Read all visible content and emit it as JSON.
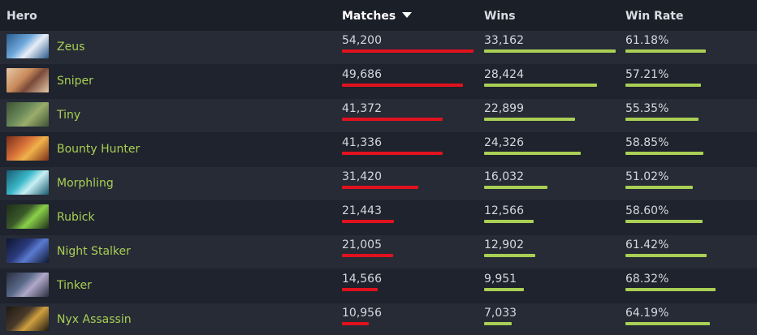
{
  "header": {
    "hero": "Hero",
    "matches": "Matches",
    "wins": "Wins",
    "win_rate": "Win Rate"
  },
  "colors": {
    "matches_bar": "#e0121e",
    "wins_bar": "#a9cf54",
    "hero_name": "#a9cf54"
  },
  "rows": [
    {
      "hero": "Zeus",
      "matches": "54,200",
      "wins": "33,162",
      "win_rate": "61.18%",
      "matches_value": 54200,
      "wins_value": 33162,
      "win_rate_value": 61.18
    },
    {
      "hero": "Sniper",
      "matches": "49,686",
      "wins": "28,424",
      "win_rate": "57.21%",
      "matches_value": 49686,
      "wins_value": 28424,
      "win_rate_value": 57.21
    },
    {
      "hero": "Tiny",
      "matches": "41,372",
      "wins": "22,899",
      "win_rate": "55.35%",
      "matches_value": 41372,
      "wins_value": 22899,
      "win_rate_value": 55.35
    },
    {
      "hero": "Bounty Hunter",
      "matches": "41,336",
      "wins": "24,326",
      "win_rate": "58.85%",
      "matches_value": 41336,
      "wins_value": 24326,
      "win_rate_value": 58.85
    },
    {
      "hero": "Morphling",
      "matches": "31,420",
      "wins": "16,032",
      "win_rate": "51.02%",
      "matches_value": 31420,
      "wins_value": 16032,
      "win_rate_value": 51.02
    },
    {
      "hero": "Rubick",
      "matches": "21,443",
      "wins": "12,566",
      "win_rate": "58.60%",
      "matches_value": 21443,
      "wins_value": 12566,
      "win_rate_value": 58.6
    },
    {
      "hero": "Night Stalker",
      "matches": "21,005",
      "wins": "12,902",
      "win_rate": "61.42%",
      "matches_value": 21005,
      "wins_value": 12902,
      "win_rate_value": 61.42
    },
    {
      "hero": "Tinker",
      "matches": "14,566",
      "wins": "9,951",
      "win_rate": "68.32%",
      "matches_value": 14566,
      "wins_value": 9951,
      "win_rate_value": 68.32
    },
    {
      "hero": "Nyx Assassin",
      "matches": "10,956",
      "wins": "7,033",
      "win_rate": "64.19%",
      "matches_value": 10956,
      "wins_value": 7033,
      "win_rate_value": 64.19
    }
  ]
}
